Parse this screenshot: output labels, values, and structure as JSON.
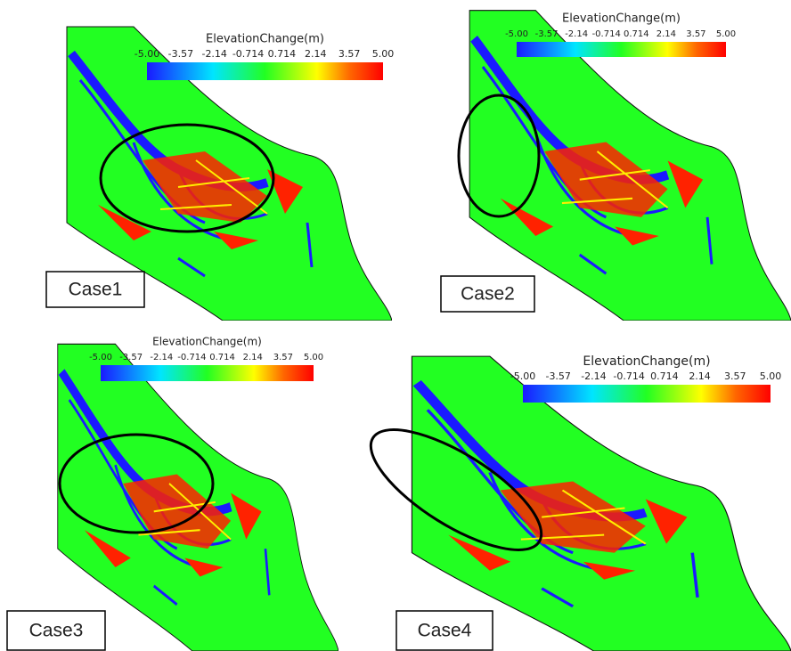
{
  "panels": [
    {
      "label": "Case1",
      "colorbar": {
        "title": "ElevationChange(m)",
        "ticks": [
          "-5.00",
          "-3.57",
          "-2.14",
          "-0.714",
          "0.714",
          "2.14",
          "3.57",
          "5.00"
        ]
      }
    },
    {
      "label": "Case2",
      "colorbar": {
        "title": "ElevationChange(m)",
        "ticks": [
          "-5.00",
          "-3.57",
          "-2.14",
          "-0.714",
          "0.714",
          "2.14",
          "3.57",
          "5.00"
        ]
      }
    },
    {
      "label": "Case3",
      "colorbar": {
        "title": "ElevationChange(m)",
        "ticks": [
          "-5.00",
          "-3.57",
          "-2.14",
          "-0.714",
          "0.714",
          "2.14",
          "3.57",
          "5.00"
        ]
      }
    },
    {
      "label": "Case4",
      "colorbar": {
        "title": "ElevationChange(m)",
        "ticks": [
          "-5.00",
          "-3.57",
          "-2.14",
          "-0.714",
          "0.714",
          "2.14",
          "3.57",
          "5.00"
        ]
      }
    }
  ]
}
